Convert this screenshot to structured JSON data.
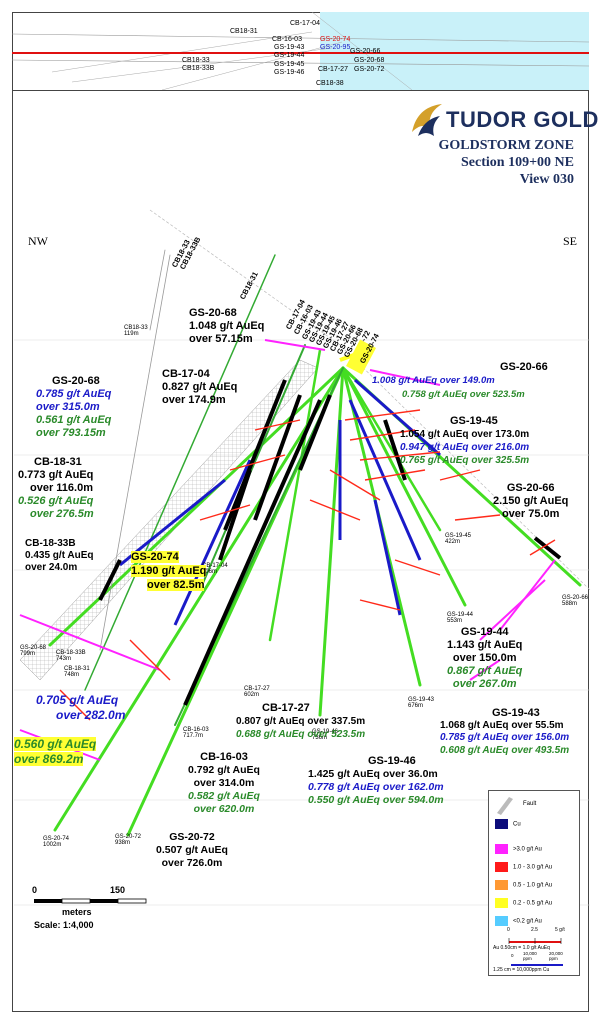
{
  "inset": {
    "labels": [
      "CB18-31",
      "CB-17-04",
      "CB-16-03",
      "GS-20-74",
      "GS-19-43",
      "GS-20-95",
      "GS-20-66",
      "GS-19-44",
      "GS-20-68",
      "GS-19-45",
      "CB-17-27",
      "GS-20-72",
      "GS-19-46",
      "CB18-33",
      "CB18-33B",
      "CB18-38"
    ]
  },
  "brand": "TUDOR GOLD",
  "title": {
    "zone": "GOLDSTORM ZONE",
    "section": "Section 109+00 NE",
    "view": "View 030"
  },
  "directions": {
    "left": "NW",
    "right": "SE"
  },
  "collars": [
    "CB18-33",
    "CB18-33B",
    "CB18-31",
    "CB-17-04",
    "CB-16-03",
    "GS-19-43",
    "GS-19-44",
    "GS-19-45",
    "GS-19-46",
    "CB-17-27",
    "GS-20-66",
    "GS-20-68",
    "GS-20-72",
    "GS-20-74"
  ],
  "hole_ends": {
    "cb18_33": [
      "CB18-33",
      "119m"
    ],
    "cb17_04": [
      "CB-17-04",
      "406m"
    ],
    "gs19_45": [
      "GS-19-45",
      "422m"
    ],
    "gs20_66": [
      "GS-20-66",
      "588m"
    ],
    "gs19_44": [
      "GS-19-44",
      "553m"
    ],
    "gs20_68": [
      "GS-20-68",
      "799m"
    ],
    "cb18_33b": [
      "CB-18-33B",
      "743m"
    ],
    "cb18_31": [
      "CB-18-31",
      "748m"
    ],
    "cb17_27": [
      "CB-17-27",
      "602m"
    ],
    "cb16_03": [
      "CB-16-03",
      "717.7m"
    ],
    "gs19_46": [
      "GS-19-46",
      "736m"
    ],
    "gs19_43": [
      "GS-19-43",
      "676m"
    ],
    "gs20_72": [
      "GS-20-72",
      "938m"
    ],
    "gs20_74": [
      "GS-20-74",
      "1002m"
    ]
  },
  "annotations": {
    "gs20_68_top": {
      "name": "GS-20-68",
      "l1": "1.048 g/t AuEq",
      "l2": "over 57.15m"
    },
    "cb17_04": {
      "name": "CB-17-04",
      "l1": "0.827 g/t AuEq",
      "l2": "over 174.9m"
    },
    "gs20_68_left": {
      "name": "GS-20-68",
      "l1": "0.785 g/t AuEq",
      "l2": "over 315.0m",
      "l3": "0.561 g/t AuEq",
      "l4": "over 793.15m"
    },
    "gs20_66_top": {
      "name": "GS-20-66",
      "l1": "1.008 g/t AuEq over 149.0m",
      "l2": "0.758 g/t AuEq over 523.5m"
    },
    "gs19_45": {
      "name": "GS-19-45",
      "l1": "1.054 g/t AuEq over 173.0m",
      "l2": "0.947 g/t AuEq over 216.0m",
      "l3": "0.765 g/t AuEq over 325.5m"
    },
    "cb18_31": {
      "name": "CB-18-31",
      "l1": "0.773 g/t AuEq",
      "l2": "over 116.0m",
      "l3": "0.526 g/t AuEq",
      "l4": "over 276.5m"
    },
    "gs20_66_right": {
      "name": "GS-20-66",
      "l1": "2.150 g/t AuEq",
      "l2": "over 75.0m"
    },
    "cb18_33b": {
      "name": "CB-18-33B",
      "l1": "0.435 g/t AuEq",
      "l2": "over 24.0m"
    },
    "gs20_74_mid": {
      "name": "GS-20-74",
      "l1": "1.190 g/t AuEq",
      "l2": "over 82.5m"
    },
    "gs19_44": {
      "name": "GS-19-44",
      "l1": "1.143 g/t AuEq",
      "l2": "over 150.0m",
      "l3": "0.867 g/t AuEq",
      "l4": "over 267.0m"
    },
    "left_low": {
      "l1": "0.705 g/t AuEq",
      "l2": "over 282.0m",
      "l3": "0.560 g/t AuEq",
      "l4": "over 869.2m"
    },
    "cb17_27": {
      "name": "CB-17-27",
      "l1": "0.807 g/t AuEq over 337.5m",
      "l2": "0.688 g/t AuEq over 523.5m"
    },
    "gs19_43": {
      "name": "GS-19-43",
      "l1": "1.068 g/t AuEq over 55.5m",
      "l2": "0.785 g/t AuEq over 156.0m",
      "l3": "0.608 g/t AuEq over 493.5m"
    },
    "cb16_03": {
      "name": "CB-16-03",
      "l1": "0.792 g/t AuEq",
      "l2": "over 314.0m",
      "l3": "0.582 g/t AuEq",
      "l4": "over 620.0m"
    },
    "gs19_46": {
      "name": "GS-19-46",
      "l1": "1.425 g/t AuEq over 36.0m",
      "l2": "0.778 g/t AuEq over 162.0m",
      "l3": "0.550 g/t AuEq over 594.0m"
    },
    "gs20_72": {
      "name": "GS-20-72",
      "l1": "0.507 g/t AuEq",
      "l2": "over 726.0m"
    }
  },
  "scale": {
    "zero": "0",
    "max": "150",
    "unit": "meters",
    "ratio": "Scale: 1:4,000"
  },
  "legend": {
    "fault": "Fault",
    "cu": "Cu",
    "items": [
      {
        "label": ">3.0 g/t Au",
        "color": "#ff22ff"
      },
      {
        "label": "1.0 - 3.0 g/t Au",
        "color": "#ff1a1a"
      },
      {
        "label": "0.5 - 1.0 g/t Au",
        "color": "#ff9933"
      },
      {
        "label": "0.2 - 0.5 g/t Au",
        "color": "#ffff22"
      },
      {
        "label": "<0.2 g/t Au",
        "color": "#55ccff"
      }
    ],
    "au_scale": {
      "zero": "0",
      "mid": "2.5",
      "max": "5 g/t",
      "note": "Au 0.50cm = 1.0 g/t AuEq"
    },
    "cu_scale": {
      "zero": "0",
      "mid": "10,000 ppm",
      "max": "20,000 ppm",
      "note": "1.25 cm = 10,000ppm Cu"
    }
  }
}
